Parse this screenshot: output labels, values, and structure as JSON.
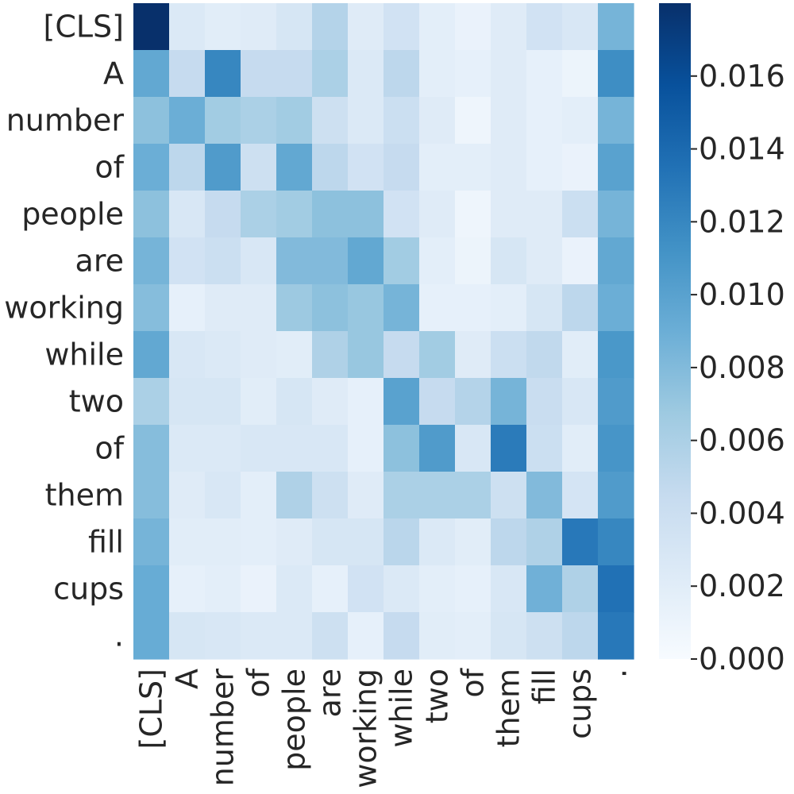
{
  "chart_data": {
    "type": "heatmap",
    "title": "",
    "xlabel": "",
    "ylabel": "",
    "row_labels": [
      "[CLS]",
      "A",
      "number",
      "of",
      "people",
      "are",
      "working",
      "while",
      "two",
      "of",
      "them",
      "fill",
      "cups",
      "."
    ],
    "col_labels": [
      "[CLS]",
      "A",
      "number",
      "of",
      "people",
      "are",
      "working",
      "while",
      "two",
      "of",
      "them",
      "fill",
      "cups",
      "."
    ],
    "values": [
      [
        0.018,
        0.0025,
        0.002,
        0.0022,
        0.003,
        0.0055,
        0.0022,
        0.0035,
        0.0018,
        0.0012,
        0.0022,
        0.0035,
        0.0028,
        0.0085
      ],
      [
        0.0095,
        0.0045,
        0.012,
        0.0045,
        0.0045,
        0.006,
        0.0025,
        0.005,
        0.0018,
        0.0015,
        0.0022,
        0.0015,
        0.001,
        0.0115
      ],
      [
        0.0075,
        0.009,
        0.0065,
        0.006,
        0.0065,
        0.0038,
        0.0025,
        0.004,
        0.0022,
        0.0008,
        0.0022,
        0.0015,
        0.0018,
        0.0085
      ],
      [
        0.009,
        0.005,
        0.0105,
        0.0038,
        0.0095,
        0.005,
        0.0035,
        0.0045,
        0.0018,
        0.0018,
        0.0022,
        0.0015,
        0.0012,
        0.01
      ],
      [
        0.0075,
        0.0028,
        0.0045,
        0.006,
        0.0065,
        0.0075,
        0.0075,
        0.0035,
        0.0022,
        0.0008,
        0.0022,
        0.0022,
        0.004,
        0.0085
      ],
      [
        0.0085,
        0.0035,
        0.004,
        0.0028,
        0.008,
        0.008,
        0.0095,
        0.0065,
        0.0018,
        0.001,
        0.003,
        0.0022,
        0.0012,
        0.0095
      ],
      [
        0.0078,
        0.0015,
        0.0022,
        0.0022,
        0.0068,
        0.0075,
        0.007,
        0.0085,
        0.0015,
        0.0015,
        0.0018,
        0.003,
        0.005,
        0.009
      ],
      [
        0.0095,
        0.0028,
        0.0025,
        0.0022,
        0.002,
        0.0058,
        0.007,
        0.0045,
        0.0065,
        0.0022,
        0.004,
        0.0048,
        0.002,
        0.0108
      ],
      [
        0.006,
        0.003,
        0.003,
        0.002,
        0.003,
        0.0022,
        0.0015,
        0.01,
        0.0045,
        0.0055,
        0.0085,
        0.0042,
        0.0028,
        0.0105
      ],
      [
        0.0078,
        0.0025,
        0.0025,
        0.0028,
        0.0028,
        0.0028,
        0.0015,
        0.0075,
        0.0105,
        0.0028,
        0.0128,
        0.004,
        0.002,
        0.011
      ],
      [
        0.0078,
        0.0022,
        0.0028,
        0.0018,
        0.0058,
        0.0038,
        0.0022,
        0.006,
        0.006,
        0.006,
        0.0038,
        0.008,
        0.0032,
        0.0105
      ],
      [
        0.0085,
        0.002,
        0.002,
        0.0018,
        0.0022,
        0.003,
        0.003,
        0.0052,
        0.0025,
        0.002,
        0.005,
        0.0058,
        0.013,
        0.012
      ],
      [
        0.0092,
        0.0015,
        0.0018,
        0.0012,
        0.0025,
        0.0015,
        0.0035,
        0.0025,
        0.0018,
        0.0015,
        0.0028,
        0.0088,
        0.0058,
        0.0135
      ],
      [
        0.0092,
        0.003,
        0.0028,
        0.0025,
        0.0025,
        0.0038,
        0.0015,
        0.0045,
        0.002,
        0.0018,
        0.003,
        0.0038,
        0.005,
        0.013
      ]
    ],
    "vmin": 0.0,
    "vmax": 0.018,
    "colormap": "Blues",
    "colorbar": {
      "ticks": [
        0.0,
        0.002,
        0.004,
        0.006,
        0.008,
        0.01,
        0.012,
        0.014,
        0.016
      ],
      "tick_labels": [
        "0.000",
        "0.002",
        "0.004",
        "0.006",
        "0.008",
        "0.010",
        "0.012",
        "0.014",
        "0.016"
      ]
    },
    "colors": {
      "text": "#262626",
      "background": "#ffffff"
    }
  }
}
